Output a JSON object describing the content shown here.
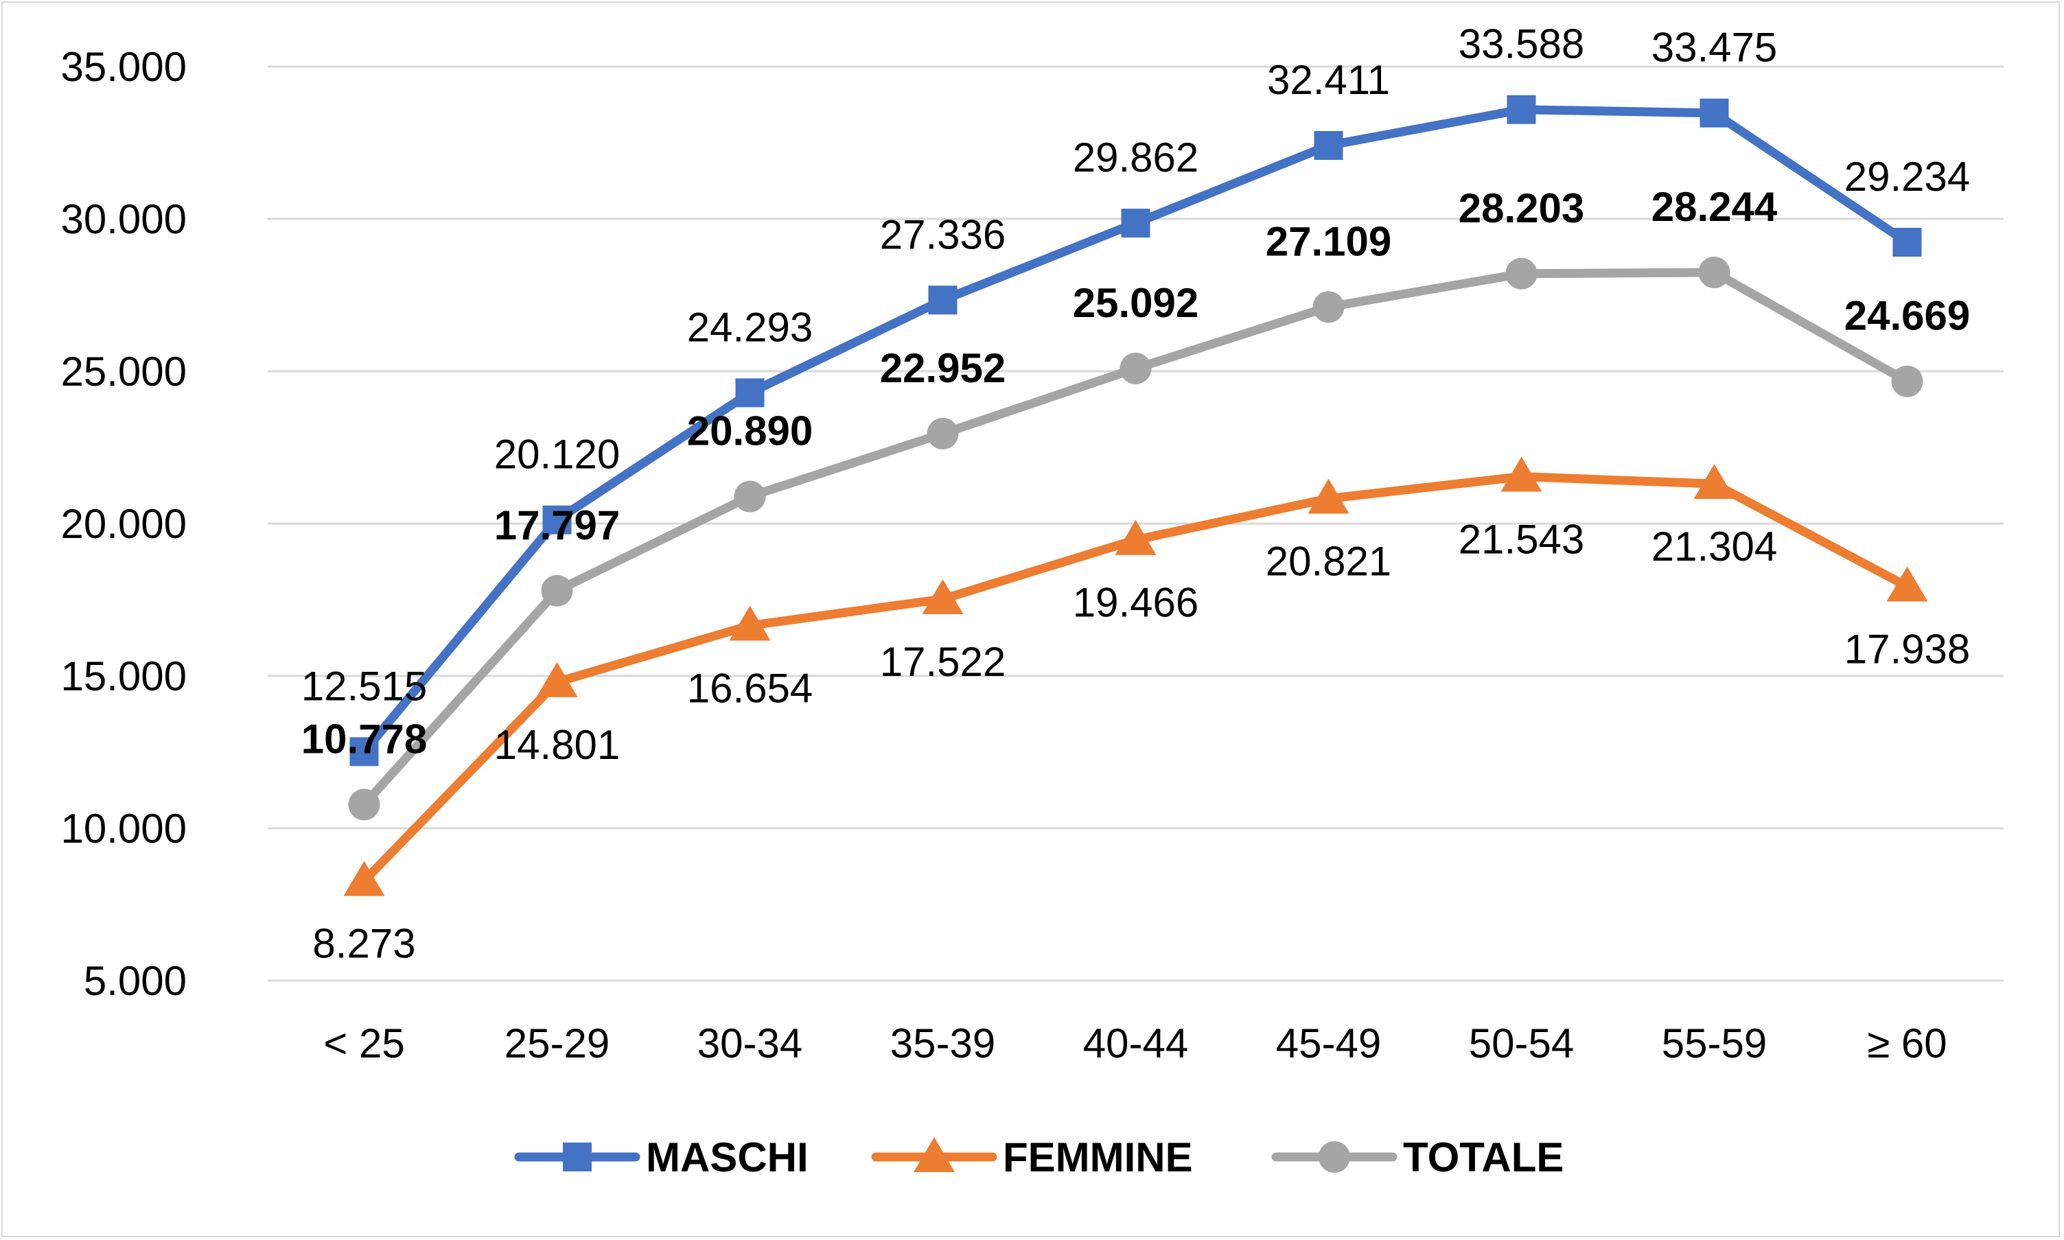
{
  "chart_data": {
    "type": "line",
    "categories": [
      "< 25",
      "25-29",
      "30-34",
      "35-39",
      "40-44",
      "45-49",
      "50-54",
      "55-59",
      "≥ 60"
    ],
    "series": [
      {
        "name": "MASCHI",
        "values": [
          12515,
          20120,
          24293,
          27336,
          29862,
          32411,
          33588,
          33475,
          29234
        ],
        "labels": [
          "12.515",
          "20.120",
          "24.293",
          "27.336",
          "29.862",
          "32.411",
          "33.588",
          "33.475",
          "29.234"
        ],
        "color": "#4472c4",
        "marker": "square",
        "label_position": "above",
        "label_bold": false
      },
      {
        "name": "FEMMINE",
        "values": [
          8273,
          14801,
          16654,
          17522,
          19466,
          20821,
          21543,
          21304,
          17938
        ],
        "labels": [
          "8.273",
          "14.801",
          "16.654",
          "17.522",
          "19.466",
          "20.821",
          "21.543",
          "21.304",
          "17.938"
        ],
        "color": "#ed7d31",
        "marker": "triangle",
        "label_position": "below",
        "label_bold": false
      },
      {
        "name": "TOTALE",
        "values": [
          10778,
          17797,
          20890,
          22952,
          25092,
          27109,
          28203,
          28244,
          24669
        ],
        "labels": [
          "10.778",
          "17.797",
          "20.890",
          "22.952",
          "25.092",
          "27.109",
          "28.203",
          "28.244",
          "24.669"
        ],
        "color": "#a5a5a5",
        "marker": "circle",
        "label_position": "above",
        "label_bold": true
      }
    ],
    "y_ticks": [
      5000,
      10000,
      15000,
      20000,
      25000,
      30000,
      35000
    ],
    "y_tick_labels": [
      "5.000",
      "10.000",
      "15.000",
      "20.000",
      "25.000",
      "30.000",
      "35.000"
    ],
    "ylim": [
      5000,
      35000
    ],
    "title": "",
    "xlabel": "",
    "ylabel": "",
    "grid": "horizontal",
    "legend": "bottom-center",
    "gridline_color": "#d9d9d9"
  }
}
